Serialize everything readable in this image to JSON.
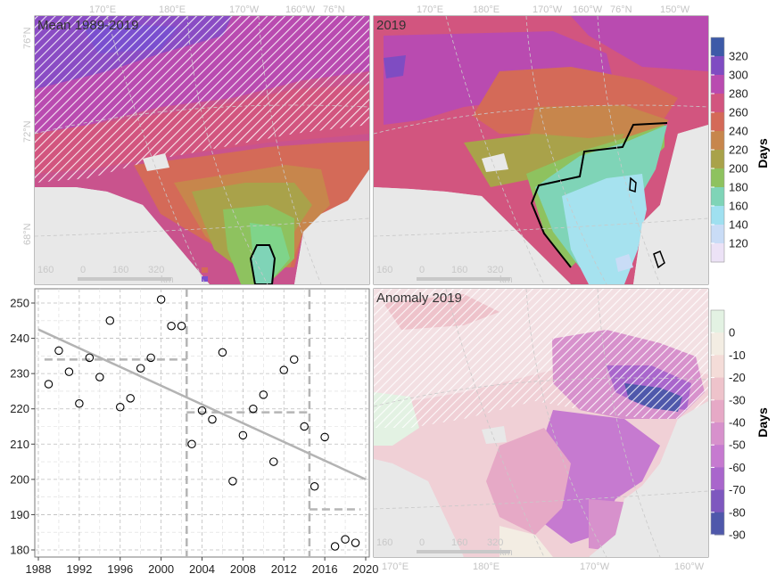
{
  "panels": {
    "mean": {
      "title": "Mean 1989-2019"
    },
    "y2019": {
      "title": "2019"
    },
    "anomaly": {
      "title": "Anomaly 2019"
    }
  },
  "map_grid_labels": {
    "top": [
      "170°E",
      "180°E",
      "170°W",
      "160°W",
      "76°N",
      "150°W"
    ],
    "left": [
      "76°N",
      "72°N",
      "68°N"
    ],
    "bottom": [
      "170°E",
      "180°E",
      "170°W",
      "160°W"
    ]
  },
  "scalebar": {
    "labels": [
      "160",
      "0",
      "160",
      "320"
    ],
    "unit": "km"
  },
  "legend_top": {
    "title": "Days",
    "ticks": [
      "320",
      "300",
      "280",
      "260",
      "240",
      "220",
      "200",
      "180",
      "160",
      "140",
      "120"
    ],
    "colors": [
      "#3d5aa8",
      "#7f4cc2",
      "#b94bb0",
      "#d2557f",
      "#d46a58",
      "#c7864c",
      "#a9a24a",
      "#8ec25f",
      "#7fd4b7",
      "#9fe0f0",
      "#c9dcf6",
      "#ece2f6"
    ]
  },
  "legend_bottom": {
    "title": "Days",
    "ticks": [
      "0",
      "-10",
      "-20",
      "-30",
      "-40",
      "-50",
      "-60",
      "-70",
      "-80",
      "-90"
    ],
    "colors": [
      "#e3f2e3",
      "#f3ede3",
      "#f4dcd8",
      "#eec3cb",
      "#e6a9c6",
      "#d791cc",
      "#c67ad0",
      "#a966cc",
      "#7e58bf",
      "#4f58ab"
    ]
  },
  "chart_data": {
    "type": "scatter",
    "x_ticks": [
      "1988",
      "1992",
      "1996",
      "2000",
      "2004",
      "2008",
      "2012",
      "2016",
      "2020"
    ],
    "y_ticks": [
      "180",
      "190",
      "200",
      "210",
      "220",
      "230",
      "240",
      "250"
    ],
    "xlim": [
      1988,
      2020
    ],
    "ylim": [
      178,
      254
    ],
    "points": {
      "x": [
        1989,
        1990,
        1991,
        1992,
        1993,
        1994,
        1995,
        1996,
        1997,
        1998,
        1999,
        2000,
        2001,
        2002,
        2003,
        2004,
        2005,
        2006,
        2007,
        2008,
        2009,
        2010,
        2011,
        2012,
        2013,
        2014,
        2015,
        2016,
        2017,
        2018,
        2019
      ],
      "y": [
        227,
        236.5,
        230.5,
        221.5,
        234.5,
        229,
        245,
        220.5,
        223,
        231.5,
        234.5,
        251,
        243.5,
        243.5,
        210,
        219.5,
        217,
        236,
        199.5,
        212.5,
        220,
        224,
        205,
        231,
        234,
        215,
        198,
        212,
        181,
        183,
        182
      ]
    },
    "trend": {
      "x": [
        1988,
        2020
      ],
      "y": [
        242.5,
        200
      ]
    },
    "periods": [
      {
        "x": [
          1988.6,
          2002.5
        ],
        "mean": 234
      },
      {
        "x": [
          2002.5,
          2014.5
        ],
        "mean": 219
      },
      {
        "x": [
          2014.5,
          2019.5
        ],
        "mean": 191.5
      }
    ]
  }
}
